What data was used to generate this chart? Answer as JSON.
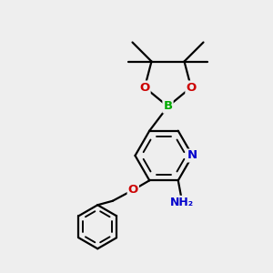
{
  "background_color": "#eeeeee",
  "bond_color": "#000000",
  "bond_width": 1.6,
  "atom_colors": {
    "C": "#000000",
    "N": "#0000cc",
    "O": "#cc0000",
    "B": "#00aa00",
    "H": "#1a1a1a"
  },
  "font_size": 9.5,
  "figsize": [
    3.0,
    3.0
  ],
  "dpi": 100,
  "xlim": [
    0,
    10
  ],
  "ylim": [
    0,
    10
  ]
}
